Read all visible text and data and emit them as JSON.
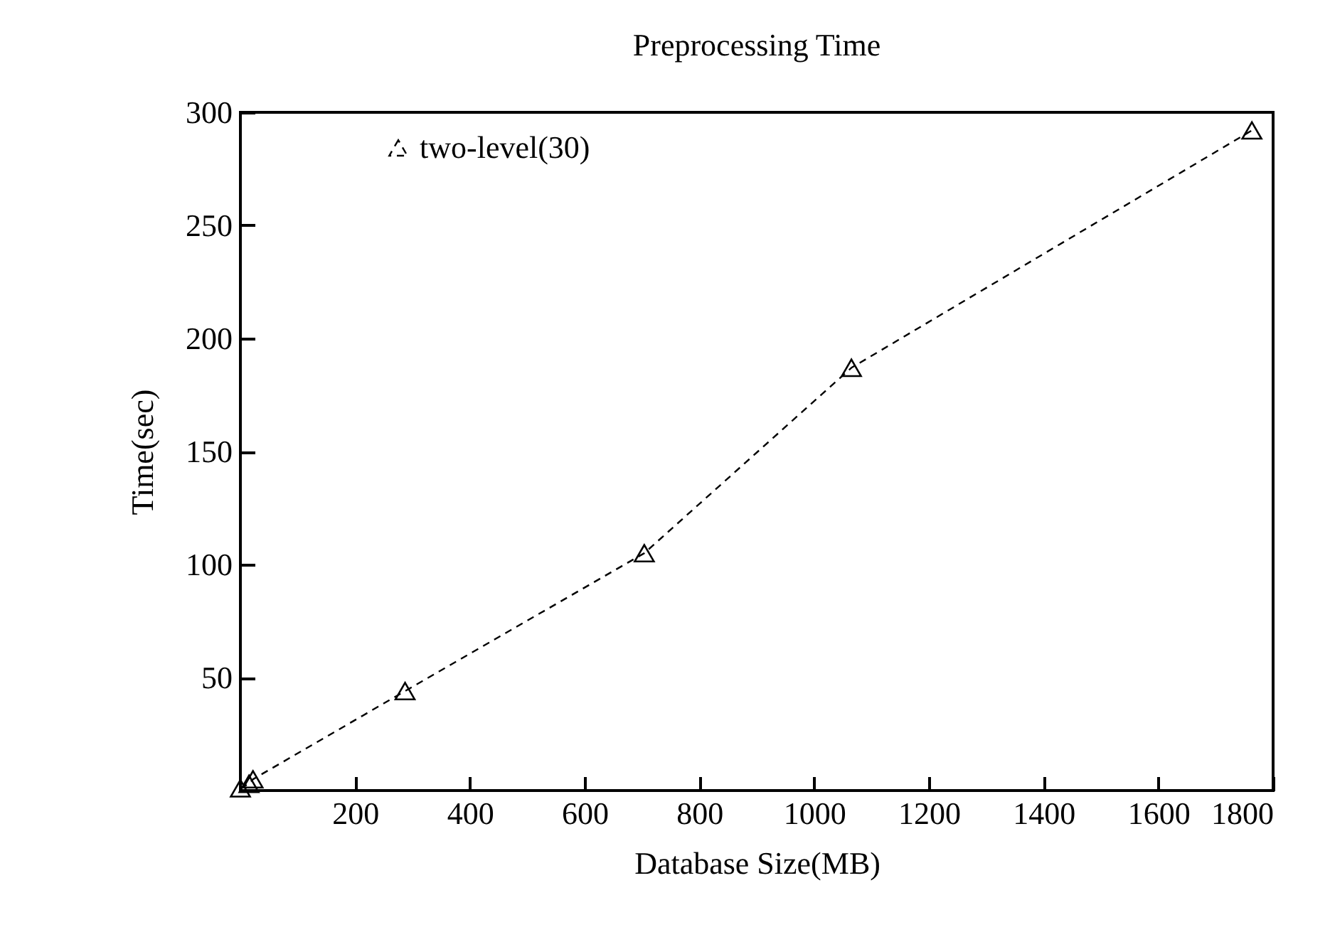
{
  "chart_data": {
    "type": "line",
    "title": "Preprocessing Time",
    "xlabel": "Database Size(MB)",
    "ylabel": "Time(sec)",
    "x": [
      0,
      15,
      22,
      287,
      704,
      1065,
      1763
    ],
    "series": [
      {
        "name": "two-level(30)",
        "color": "#000000",
        "values": [
          1,
          3,
          5,
          44,
          105,
          187,
          292
        ]
      }
    ],
    "xlim": [
      0,
      1800
    ],
    "xticks": [
      200,
      400,
      600,
      800,
      1000,
      1200,
      1400,
      1600,
      1800
    ],
    "ylim": [
      0,
      300
    ],
    "yticks": [
      50,
      100,
      150,
      200,
      250,
      300
    ],
    "legend": "top",
    "marker": "triangle",
    "line_style": "dashed",
    "grid": false
  }
}
